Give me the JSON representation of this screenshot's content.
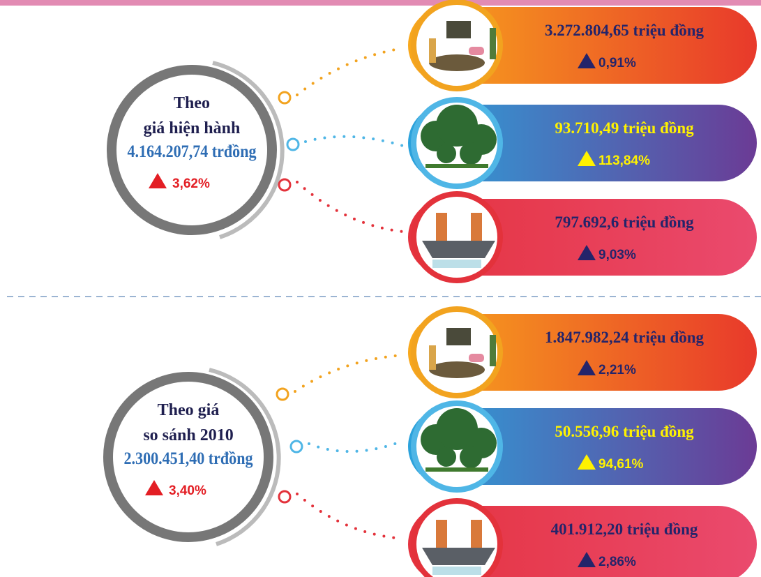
{
  "sections": [
    {
      "title_lines": [
        "Theo",
        "giá hiện hành"
      ],
      "total": "4.164.207,74 trđồng",
      "change": "3,62%",
      "items": [
        {
          "value": "3.272.804,65 triệu đồng",
          "change": "0,91%"
        },
        {
          "value": "93.710,49 triệu đồng",
          "change": "113,84%"
        },
        {
          "value": "797.692,6 triệu đồng",
          "change": "9,03%"
        }
      ]
    },
    {
      "title_lines": [
        "Theo giá",
        "so sánh 2010"
      ],
      "total": "2.300.451,40 trđồng",
      "change": "3,40%",
      "items": [
        {
          "value": "1.847.982,24 triệu đồng",
          "change": "2,21%"
        },
        {
          "value": "50.556,96 triệu đồng",
          "change": "94,61%"
        },
        {
          "value": "401.912,20 triệu đồng",
          "change": "2,86%"
        }
      ]
    }
  ]
}
